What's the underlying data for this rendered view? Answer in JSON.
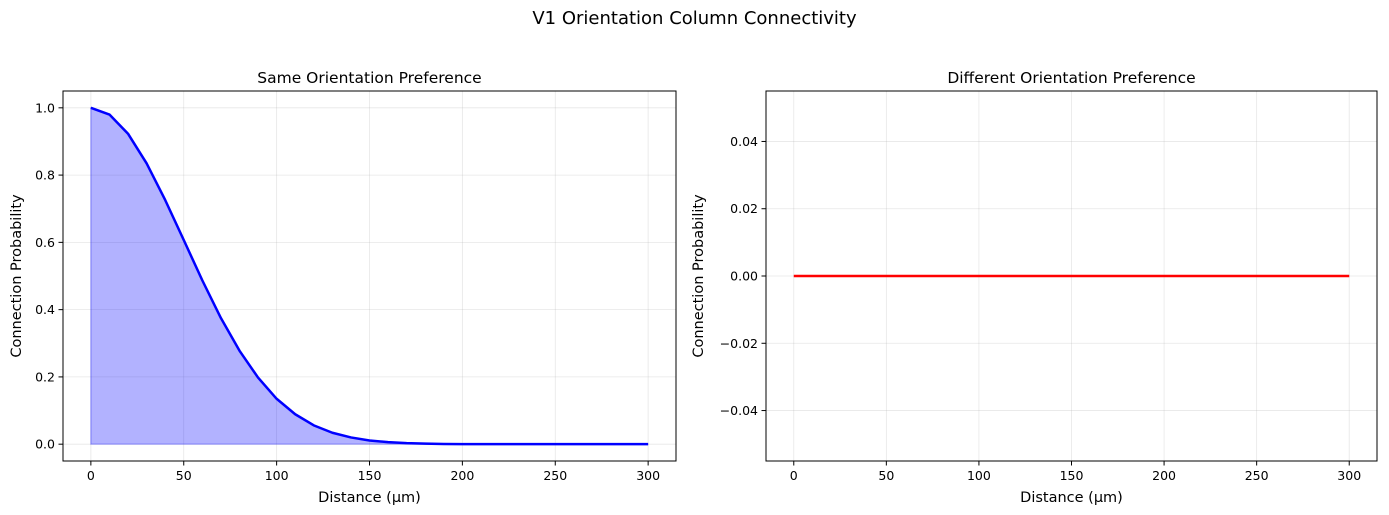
{
  "figure": {
    "suptitle": "V1 Orientation Column Connectivity"
  },
  "chart_data": [
    {
      "type": "area",
      "title": "Same Orientation Preference",
      "xlabel": "Distance (μm)",
      "ylabel": "Connection Probability",
      "xlim": [
        -15,
        315
      ],
      "ylim": [
        -0.05,
        1.05
      ],
      "xticks": [
        0,
        50,
        100,
        150,
        200,
        250,
        300
      ],
      "yticks": [
        0.0,
        0.2,
        0.4,
        0.6,
        0.8,
        1.0
      ],
      "ytick_decimals": 1,
      "grid": true,
      "series": [
        {
          "line_color": "#0000ff",
          "fill_color": "#0000ff",
          "fill_alpha": 0.3,
          "x": [
            0,
            10,
            20,
            30,
            40,
            50,
            60,
            70,
            80,
            90,
            100,
            110,
            120,
            130,
            140,
            150,
            160,
            170,
            180,
            190,
            200,
            220,
            240,
            260,
            280,
            300
          ],
          "y": [
            1.0,
            0.98,
            0.923,
            0.835,
            0.726,
            0.607,
            0.487,
            0.375,
            0.278,
            0.198,
            0.135,
            0.089,
            0.056,
            0.034,
            0.02,
            0.011,
            0.006,
            0.003,
            0.0015,
            0.0007,
            0.0003,
            0.0001,
            0.0,
            0.0,
            0.0,
            0.0
          ]
        }
      ]
    },
    {
      "type": "line",
      "title": "Different Orientation Preference",
      "xlabel": "Distance (μm)",
      "ylabel": "Connection Probability",
      "xlim": [
        -15,
        315
      ],
      "ylim": [
        -0.055,
        0.055
      ],
      "xticks": [
        0,
        50,
        100,
        150,
        200,
        250,
        300
      ],
      "yticks": [
        -0.04,
        -0.02,
        0.0,
        0.02,
        0.04
      ],
      "ytick_decimals": 2,
      "grid": true,
      "series": [
        {
          "line_color": "#ff0000",
          "x": [
            0,
            300
          ],
          "y": [
            0.0,
            0.0
          ]
        }
      ]
    }
  ]
}
